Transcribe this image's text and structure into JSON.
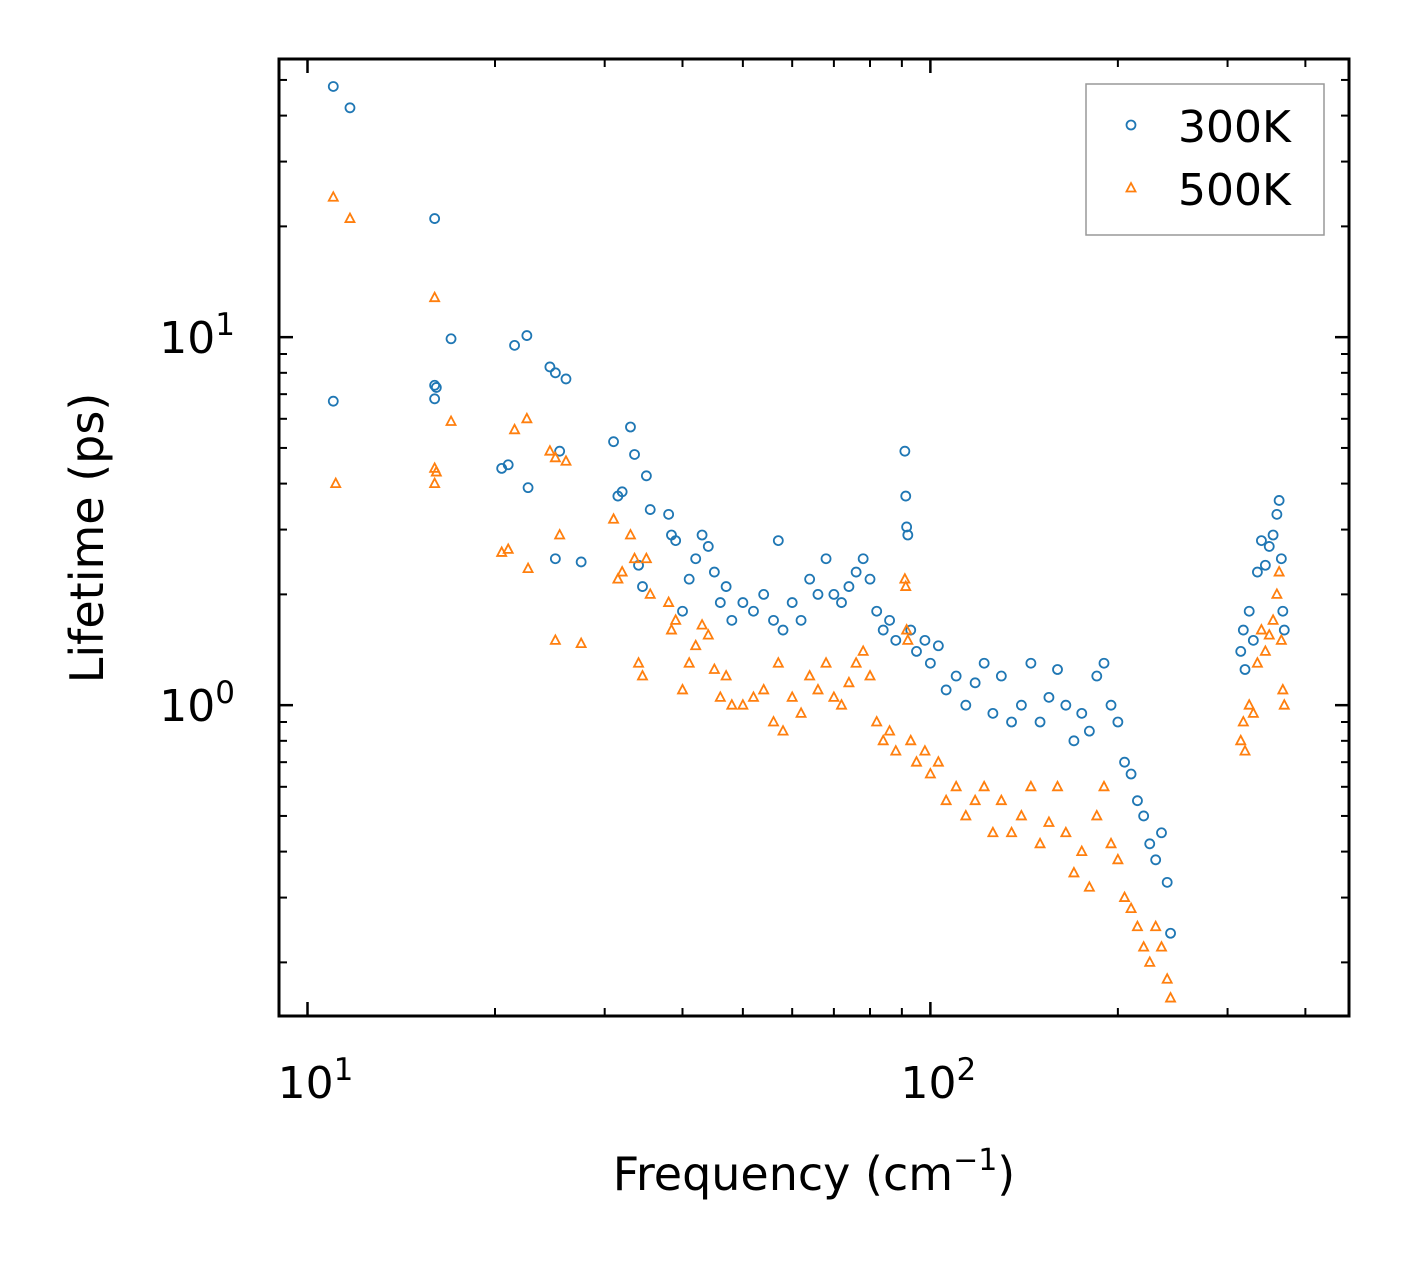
{
  "chart_data": {
    "type": "scatter",
    "title": "",
    "xlabel": "Frequency (cm",
    "xlabel_sup": "−1",
    "xlabel_close": ")",
    "ylabel": "Lifetime (ps)",
    "xscale": "log",
    "yscale": "log",
    "xlim": [
      9,
      470
    ],
    "ylim": [
      0.143,
      57
    ],
    "x_tick_labels": [
      {
        "value": 10,
        "base": "10",
        "exp": "1"
      },
      {
        "value": 100,
        "base": "10",
        "exp": "2"
      }
    ],
    "y_tick_labels": [
      {
        "value": 1,
        "base": "10",
        "exp": "0"
      },
      {
        "value": 10,
        "base": "10",
        "exp": "1"
      }
    ],
    "legend": {
      "position": "top-right"
    },
    "series": [
      {
        "name": "300K",
        "marker": "circle",
        "color": "#1f77b4",
        "points": [
          [
            11,
            48
          ],
          [
            11.7,
            42
          ],
          [
            11,
            6.7
          ],
          [
            16,
            21
          ],
          [
            16,
            7.4
          ],
          [
            16.1,
            7.3
          ],
          [
            16,
            6.8
          ],
          [
            17,
            9.9
          ],
          [
            20.5,
            4.4
          ],
          [
            21,
            4.5
          ],
          [
            21.5,
            9.5
          ],
          [
            22.5,
            10.1
          ],
          [
            22.6,
            3.9
          ],
          [
            24.5,
            8.3
          ],
          [
            25,
            8.0
          ],
          [
            25.4,
            4.9
          ],
          [
            26,
            7.7
          ],
          [
            25,
            2.5
          ],
          [
            27.5,
            2.45
          ],
          [
            31,
            5.2
          ],
          [
            31.5,
            3.7
          ],
          [
            32,
            3.8
          ],
          [
            33,
            5.7
          ],
          [
            33.5,
            4.8
          ],
          [
            35,
            4.2
          ],
          [
            35.5,
            3.4
          ],
          [
            34,
            2.4
          ],
          [
            34.5,
            2.1
          ],
          [
            38,
            3.3
          ],
          [
            38.4,
            2.9
          ],
          [
            39,
            2.8
          ],
          [
            40,
            1.8
          ],
          [
            41,
            2.2
          ],
          [
            42,
            2.5
          ],
          [
            43,
            2.9
          ],
          [
            44,
            2.7
          ],
          [
            45,
            2.3
          ],
          [
            46,
            1.9
          ],
          [
            47,
            2.1
          ],
          [
            48,
            1.7
          ],
          [
            50,
            1.9
          ],
          [
            52,
            1.8
          ],
          [
            54,
            2.0
          ],
          [
            56,
            1.7
          ],
          [
            57,
            2.8
          ],
          [
            58,
            1.6
          ],
          [
            60,
            1.9
          ],
          [
            62,
            1.7
          ],
          [
            64,
            2.2
          ],
          [
            66,
            2.0
          ],
          [
            68,
            2.5
          ],
          [
            70,
            2.0
          ],
          [
            72,
            1.9
          ],
          [
            74,
            2.1
          ],
          [
            76,
            2.3
          ],
          [
            78,
            2.5
          ],
          [
            80,
            2.2
          ],
          [
            82,
            1.8
          ],
          [
            84,
            1.6
          ],
          [
            86,
            1.7
          ],
          [
            88,
            1.5
          ],
          [
            91,
            4.9
          ],
          [
            91.3,
            3.7
          ],
          [
            91.6,
            3.05
          ],
          [
            92,
            2.9
          ],
          [
            93,
            1.6
          ],
          [
            95,
            1.4
          ],
          [
            98,
            1.5
          ],
          [
            100,
            1.3
          ],
          [
            103,
            1.45
          ],
          [
            106,
            1.1
          ],
          [
            110,
            1.2
          ],
          [
            114,
            1.0
          ],
          [
            118,
            1.15
          ],
          [
            122,
            1.3
          ],
          [
            126,
            0.95
          ],
          [
            130,
            1.2
          ],
          [
            135,
            0.9
          ],
          [
            140,
            1.0
          ],
          [
            145,
            1.3
          ],
          [
            150,
            0.9
          ],
          [
            155,
            1.05
          ],
          [
            160,
            1.25
          ],
          [
            165,
            1.0
          ],
          [
            170,
            0.8
          ],
          [
            175,
            0.95
          ],
          [
            180,
            0.85
          ],
          [
            185,
            1.2
          ],
          [
            190,
            1.3
          ],
          [
            195,
            1.0
          ],
          [
            200,
            0.9
          ],
          [
            205,
            0.7
          ],
          [
            210,
            0.65
          ],
          [
            215,
            0.55
          ],
          [
            220,
            0.5
          ],
          [
            225,
            0.42
          ],
          [
            230,
            0.38
          ],
          [
            235,
            0.45
          ],
          [
            240,
            0.33
          ],
          [
            243,
            0.24
          ],
          [
            315,
            1.4
          ],
          [
            318,
            1.6
          ],
          [
            320,
            1.25
          ],
          [
            325,
            1.8
          ],
          [
            330,
            1.5
          ],
          [
            335,
            2.3
          ],
          [
            340,
            2.8
          ],
          [
            345,
            2.4
          ],
          [
            350,
            2.7
          ],
          [
            355,
            2.9
          ],
          [
            360,
            3.3
          ],
          [
            363,
            3.6
          ],
          [
            366,
            2.5
          ],
          [
            368,
            1.8
          ],
          [
            370,
            1.6
          ]
        ]
      },
      {
        "name": "500K",
        "marker": "triangle",
        "color": "#ff7f0e",
        "points": [
          [
            11,
            24
          ],
          [
            11.7,
            21
          ],
          [
            11.1,
            4.0
          ],
          [
            16,
            12.8
          ],
          [
            16,
            4.4
          ],
          [
            16.1,
            4.3
          ],
          [
            16,
            4.0
          ],
          [
            17,
            5.9
          ],
          [
            20.5,
            2.6
          ],
          [
            21,
            2.65
          ],
          [
            21.5,
            5.6
          ],
          [
            22.5,
            6.0
          ],
          [
            22.6,
            2.35
          ],
          [
            24.5,
            4.9
          ],
          [
            25,
            4.7
          ],
          [
            25.4,
            2.9
          ],
          [
            26,
            4.6
          ],
          [
            25,
            1.5
          ],
          [
            27.5,
            1.47
          ],
          [
            31,
            3.2
          ],
          [
            31.5,
            2.2
          ],
          [
            32,
            2.3
          ],
          [
            33,
            2.9
          ],
          [
            33.5,
            2.5
          ],
          [
            35,
            2.5
          ],
          [
            35.5,
            2.0
          ],
          [
            34,
            1.3
          ],
          [
            34.5,
            1.2
          ],
          [
            38,
            1.9
          ],
          [
            38.4,
            1.6
          ],
          [
            39,
            1.7
          ],
          [
            40,
            1.1
          ],
          [
            41,
            1.3
          ],
          [
            42,
            1.45
          ],
          [
            43,
            1.65
          ],
          [
            44,
            1.55
          ],
          [
            45,
            1.25
          ],
          [
            46,
            1.05
          ],
          [
            47,
            1.2
          ],
          [
            48,
            1.0
          ],
          [
            50,
            1.0
          ],
          [
            52,
            1.05
          ],
          [
            54,
            1.1
          ],
          [
            56,
            0.9
          ],
          [
            57,
            1.3
          ],
          [
            58,
            0.85
          ],
          [
            60,
            1.05
          ],
          [
            62,
            0.95
          ],
          [
            64,
            1.2
          ],
          [
            66,
            1.1
          ],
          [
            68,
            1.3
          ],
          [
            70,
            1.05
          ],
          [
            72,
            1.0
          ],
          [
            74,
            1.15
          ],
          [
            76,
            1.3
          ],
          [
            78,
            1.4
          ],
          [
            80,
            1.2
          ],
          [
            82,
            0.9
          ],
          [
            84,
            0.8
          ],
          [
            86,
            0.85
          ],
          [
            88,
            0.75
          ],
          [
            91,
            2.2
          ],
          [
            91.3,
            2.1
          ],
          [
            91.6,
            1.6
          ],
          [
            92,
            1.5
          ],
          [
            93,
            0.8
          ],
          [
            95,
            0.7
          ],
          [
            98,
            0.75
          ],
          [
            100,
            0.65
          ],
          [
            103,
            0.7
          ],
          [
            106,
            0.55
          ],
          [
            110,
            0.6
          ],
          [
            114,
            0.5
          ],
          [
            118,
            0.55
          ],
          [
            122,
            0.6
          ],
          [
            126,
            0.45
          ],
          [
            130,
            0.55
          ],
          [
            135,
            0.45
          ],
          [
            140,
            0.5
          ],
          [
            145,
            0.6
          ],
          [
            150,
            0.42
          ],
          [
            155,
            0.48
          ],
          [
            160,
            0.6
          ],
          [
            165,
            0.45
          ],
          [
            170,
            0.35
          ],
          [
            175,
            0.4
          ],
          [
            180,
            0.32
          ],
          [
            185,
            0.5
          ],
          [
            190,
            0.6
          ],
          [
            195,
            0.42
          ],
          [
            200,
            0.38
          ],
          [
            205,
            0.3
          ],
          [
            210,
            0.28
          ],
          [
            215,
            0.25
          ],
          [
            220,
            0.22
          ],
          [
            225,
            0.2
          ],
          [
            230,
            0.25
          ],
          [
            235,
            0.22
          ],
          [
            240,
            0.18
          ],
          [
            243,
            0.16
          ],
          [
            315,
            0.8
          ],
          [
            318,
            0.9
          ],
          [
            320,
            0.75
          ],
          [
            325,
            1.0
          ],
          [
            330,
            0.95
          ],
          [
            335,
            1.3
          ],
          [
            340,
            1.6
          ],
          [
            345,
            1.4
          ],
          [
            350,
            1.55
          ],
          [
            355,
            1.7
          ],
          [
            360,
            2.0
          ],
          [
            363,
            2.3
          ],
          [
            366,
            1.5
          ],
          [
            368,
            1.1
          ],
          [
            370,
            1.0
          ]
        ]
      }
    ]
  }
}
